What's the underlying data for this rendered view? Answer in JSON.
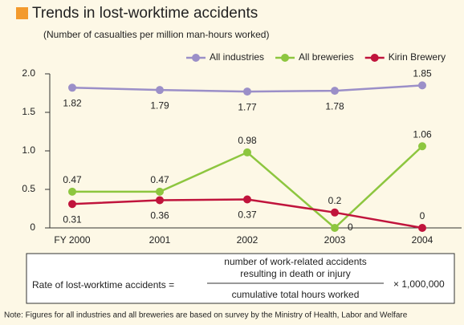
{
  "chart_data": {
    "type": "line",
    "title": "Trends in lost-worktime accidents",
    "subtitle": "(Number of casualties per million man-hours worked)",
    "categories": [
      "FY 2000",
      "2001",
      "2002",
      "2003",
      "2004"
    ],
    "series": [
      {
        "name": "All industries",
        "color": "#9b8fc8",
        "values": [
          1.82,
          1.79,
          1.77,
          1.78,
          1.85
        ]
      },
      {
        "name": "All breweries",
        "color": "#8dc63f",
        "values": [
          0.47,
          0.47,
          0.98,
          0,
          1.06
        ]
      },
      {
        "name": "Kirin Brewery",
        "color": "#c0143c",
        "values": [
          0.31,
          0.36,
          0.37,
          0.2,
          0
        ]
      }
    ],
    "ylim": [
      0,
      2.0
    ],
    "yticks": [
      0,
      0.5,
      {
        "value": 1.0,
        "label": "1.0"
      },
      1.5,
      {
        "value": 2.0,
        "label": "2.0"
      }
    ],
    "grid": false,
    "legend": "top-right"
  },
  "formula": {
    "lhs": "Rate of lost-worktime accidents =",
    "numerator": [
      "number of work-related accidents",
      "resulting in death or injury"
    ],
    "denominator": "cumulative total hours worked",
    "factor": "× 1,000,000"
  },
  "note": "Note: Figures for all industries and all breweries are based on survey by the Ministry of Health, Labor and Welfare"
}
